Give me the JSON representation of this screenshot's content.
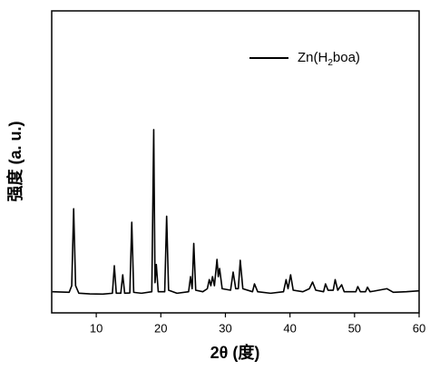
{
  "chart_data": {
    "type": "line",
    "xlabel": "2θ (度)",
    "ylabel": "强度 (a. u.)",
    "xlim": [
      3.1,
      60
    ],
    "xticks": [
      10,
      20,
      30,
      40,
      50,
      60
    ],
    "ylim": [
      0,
      100
    ],
    "yticks": [],
    "legend": "upper right",
    "x": [
      3.2,
      5.8,
      6.2,
      6.5,
      6.8,
      7.3,
      9,
      11,
      12.5,
      12.8,
      13.1,
      13.8,
      14.1,
      14.4,
      15.2,
      15.5,
      15.8,
      17,
      18.6,
      18.9,
      19.1,
      19.3,
      19.6,
      20.6,
      20.9,
      21.2,
      22.5,
      24.3,
      24.6,
      24.85,
      25.1,
      25.4,
      26.5,
      27.2,
      27.5,
      27.75,
      28,
      28.3,
      28.7,
      28.9,
      29.1,
      29.5,
      30.8,
      31.2,
      31.6,
      32,
      32.3,
      32.7,
      34.2,
      34.5,
      35,
      37,
      39,
      39.4,
      39.7,
      40.1,
      40.5,
      42,
      43,
      43.5,
      44,
      45.2,
      45.5,
      45.9,
      46.7,
      47,
      47.4,
      48,
      48.4,
      50.2,
      50.5,
      50.9,
      51.7,
      52,
      52.4,
      53,
      55,
      56,
      58,
      60
    ],
    "series": [
      {
        "name": "Zn(H2boa)",
        "color": "#000000",
        "values": [
          7,
          6.8,
          9,
          34.5,
          9,
          6.5,
          6.3,
          6.2,
          6.5,
          15.6,
          6.5,
          6.5,
          12.6,
          6.5,
          6.6,
          30,
          6.8,
          6.5,
          7,
          60.7,
          10,
          16,
          7,
          7,
          32,
          7.5,
          6.5,
          7,
          12,
          8,
          23,
          7.5,
          7,
          8,
          11,
          9,
          12,
          9,
          17.7,
          12,
          14.7,
          8,
          7.5,
          13.5,
          8,
          8,
          17.4,
          8,
          7,
          9.6,
          7,
          6.5,
          7,
          11,
          8,
          12.6,
          7.5,
          7,
          8,
          10.2,
          7.5,
          7,
          9.6,
          7.5,
          7.5,
          11,
          7.5,
          9.3,
          7,
          7,
          8.7,
          7,
          7,
          8.5,
          7,
          7.2,
          8,
          6.8,
          7,
          7.3
        ]
      }
    ]
  }
}
